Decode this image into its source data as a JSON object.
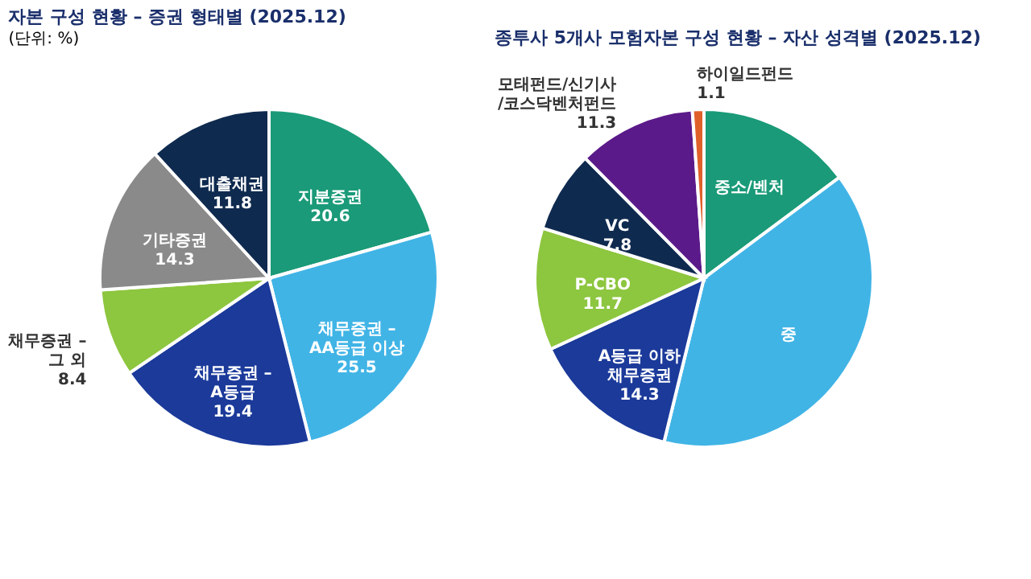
{
  "chart_data": [
    {
      "type": "pie",
      "title": "자본 구성 현황 – 증권 형태별 (2025.12)",
      "subtitle": "(단위: %)",
      "categories": [
        "지분증권",
        "채무증권 –\nAA등급 이상",
        "채무증권 –\nA등급",
        "채무증권 –\n그 외",
        "기타증권",
        "대출채권"
      ],
      "values": [
        20.6,
        25.5,
        19.4,
        8.4,
        14.3,
        11.8
      ],
      "colors": [
        "#1a9a78",
        "#41b4e6",
        "#1b3a9a",
        "#8dc63f",
        "#8a8a8a",
        "#0f2a4f"
      ],
      "data_labels": true,
      "legend": false
    },
    {
      "type": "pie",
      "title": "종투사 5개사 모험자본 구성 현황 – 자산 성격별 (2025.12)",
      "categories": [
        "중소/벤처",
        "중",
        "A등급 이하\n채무증권",
        "P-CBO",
        "VC",
        "모태펀드/신기사\n/코스닥벤처펀드",
        "하이일드펀드"
      ],
      "values": [
        14.8,
        39.0,
        14.3,
        11.7,
        7.8,
        11.3,
        1.1
      ],
      "value_labels": [
        null,
        null,
        "14.3",
        "11.7",
        "7.8",
        "11.3",
        "1.1"
      ],
      "colors": [
        "#1a9a78",
        "#41b4e6",
        "#1b3a9a",
        "#8dc63f",
        "#0f2a4f",
        "#5b1a8a",
        "#e0602a"
      ],
      "legend": false
    }
  ]
}
